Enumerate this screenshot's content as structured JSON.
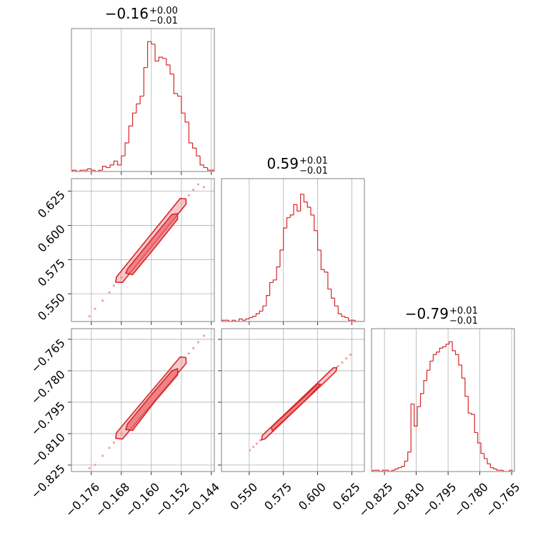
{
  "chart_data": [
    {
      "type": "histogram",
      "title": "−0.16",
      "title_upper": "+0.00",
      "title_lower": "−0.01",
      "color": "#d62728",
      "xlim": [
        -0.1813,
        -0.1432
      ],
      "xticks": [
        -0.176,
        -0.168,
        -0.16,
        -0.152,
        -0.144
      ],
      "ylim": [
        0,
        110
      ],
      "bins": [
        -0.181,
        -0.18,
        -0.179,
        -0.178,
        -0.177,
        -0.176,
        -0.175,
        -0.174,
        -0.173,
        -0.172,
        -0.171,
        -0.17,
        -0.169,
        -0.168,
        -0.167,
        -0.166,
        -0.165,
        -0.164,
        -0.163,
        -0.162,
        -0.161,
        -0.16,
        -0.159,
        -0.158,
        -0.157,
        -0.156,
        -0.155,
        -0.154,
        -0.153,
        -0.152,
        -0.151,
        -0.15,
        -0.149,
        -0.148,
        -0.147,
        -0.146,
        -0.145,
        -0.144,
        -0.143
      ],
      "values": [
        1,
        0,
        1,
        1,
        2,
        1,
        0,
        1,
        4,
        3,
        5,
        8,
        5,
        12,
        22,
        35,
        45,
        52,
        58,
        80,
        100,
        98,
        85,
        88,
        87,
        82,
        75,
        60,
        58,
        45,
        38,
        22,
        18,
        12,
        5,
        3,
        1,
        1
      ]
    },
    {
      "type": "contour",
      "color": "#d62728",
      "fill_color": "#e8646a",
      "point_color": "#f2a3a5",
      "xlim": [
        -0.1813,
        -0.1432
      ],
      "xticks": [
        -0.176,
        -0.168,
        -0.16,
        -0.152,
        -0.144
      ],
      "ylim": [
        0.5297,
        0.6342
      ],
      "yticks": [
        {
          "value": 0.55,
          "label": "0.550"
        },
        0.575,
        {
          "value": 0.6,
          "label": "0.600"
        },
        0.625
      ],
      "points": {
        "x": [
          -0.1765,
          -0.175,
          -0.173,
          -0.1712,
          -0.17,
          -0.168,
          -0.15,
          -0.1488,
          -0.1475,
          -0.146
        ],
        "y": [
          0.5335,
          0.539,
          0.545,
          0.551,
          0.556,
          0.562,
          0.622,
          0.626,
          0.63,
          0.628
        ]
      },
      "contours": [
        {
          "x": [
            -0.1693,
            -0.1658,
            -0.1608,
            -0.1558,
            -0.1523,
            -0.1508,
            -0.1507,
            -0.1542,
            -0.1592,
            -0.1642,
            -0.1677,
            -0.1695
          ],
          "y": [
            0.5623,
            0.5741,
            0.591,
            0.6079,
            0.6197,
            0.6194,
            0.6157,
            0.6039,
            0.587,
            0.5701,
            0.5583,
            0.5585
          ]
        },
        {
          "x": [
            -0.1664,
            -0.16,
            -0.1545,
            -0.153,
            -0.153,
            -0.159,
            -0.165,
            -0.1668
          ],
          "y": [
            0.568,
            0.5895,
            0.608,
            0.6085,
            0.6045,
            0.584,
            0.564,
            0.565
          ]
        }
      ]
    },
    {
      "type": "histogram",
      "title": "0.59",
      "title_upper": "+0.01",
      "title_lower": "−0.01",
      "color": "#d62728",
      "xlim": [
        0.5297,
        0.6342
      ],
      "xticks": [
        0.55,
        0.575,
        0.6,
        0.625
      ],
      "ylim": [
        0,
        110
      ],
      "bins": [
        0.53,
        0.5325,
        0.535,
        0.5375,
        0.54,
        0.5425,
        0.545,
        0.5475,
        0.55,
        0.5525,
        0.555,
        0.5575,
        0.56,
        0.5625,
        0.565,
        0.5675,
        0.57,
        0.5725,
        0.575,
        0.5775,
        0.58,
        0.5825,
        0.585,
        0.5875,
        0.59,
        0.5925,
        0.595,
        0.5975,
        0.6,
        0.6025,
        0.605,
        0.6075,
        0.61,
        0.6125,
        0.615,
        0.6175,
        0.62,
        0.6225,
        0.625,
        0.6275,
        0.63,
        0.6325
      ],
      "values": [
        1,
        1,
        0,
        1,
        0,
        2,
        1,
        2,
        3,
        4,
        6,
        8,
        12,
        20,
        30,
        32,
        42,
        55,
        72,
        80,
        82,
        90,
        85,
        98,
        92,
        88,
        82,
        70,
        55,
        40,
        38,
        25,
        18,
        12,
        6,
        4,
        3,
        1,
        1,
        0,
        0
      ]
    },
    {
      "type": "contour",
      "color": "#d62728",
      "fill_color": "#e8646a",
      "point_color": "#f2a3a5",
      "xlim": [
        -0.1813,
        -0.1432
      ],
      "xticks": [
        {
          "value": -0.176,
          "label": "−0.176"
        },
        {
          "value": -0.168,
          "label": "−0.168"
        },
        {
          "value": -0.16,
          "label": "−0.160"
        },
        {
          "value": -0.152,
          "label": "−0.152"
        },
        {
          "value": -0.144,
          "label": "−0.144"
        }
      ],
      "ylim": [
        -0.8281,
        -0.7599
      ],
      "yticks": [
        {
          "value": -0.825,
          "label": "−0.825"
        },
        {
          "value": -0.81,
          "label": "−0.810"
        },
        {
          "value": -0.795,
          "label": "−0.795"
        },
        {
          "value": -0.78,
          "label": "−0.780"
        },
        {
          "value": -0.765,
          "label": "−0.765"
        }
      ],
      "points": {
        "x": [
          -0.1765,
          -0.175,
          -0.173,
          -0.1712,
          -0.17,
          -0.168,
          -0.15,
          -0.1488,
          -0.1475,
          -0.146
        ],
        "y": [
          -0.8265,
          -0.8249,
          -0.8206,
          -0.8168,
          -0.8143,
          -0.81,
          -0.7718,
          -0.7692,
          -0.7664,
          -0.7633
        ]
      },
      "contours": [
        {
          "x": [
            -0.1693,
            -0.1658,
            -0.1608,
            -0.1558,
            -0.1523,
            -0.1508,
            -0.1507,
            -0.1542,
            -0.1592,
            -0.1642,
            -0.1677,
            -0.1695
          ],
          "y": [
            -0.8096,
            -0.8021,
            -0.7915,
            -0.7809,
            -0.7734,
            -0.7737,
            -0.7764,
            -0.7839,
            -0.7945,
            -0.8051,
            -0.8126,
            -0.8122
          ]
        },
        {
          "x": [
            -0.1664,
            -0.16,
            -0.1545,
            -0.153,
            -0.153,
            -0.159,
            -0.165,
            -0.1668
          ],
          "y": [
            -0.8055,
            -0.7915,
            -0.78,
            -0.779,
            -0.782,
            -0.7945,
            -0.8085,
            -0.808
          ]
        }
      ]
    },
    {
      "type": "contour",
      "color": "#d62728",
      "fill_color": "#e8646a",
      "point_color": "#f2a3a5",
      "xlim": [
        0.5297,
        0.6342
      ],
      "xticks": [
        {
          "value": 0.55,
          "label": "0.550"
        },
        0.575,
        {
          "value": 0.6,
          "label": "0.600"
        },
        0.625
      ],
      "ylim": [
        -0.8281,
        -0.7599
      ],
      "yticks": [
        -0.825,
        -0.81,
        -0.795,
        -0.78,
        -0.765
      ],
      "points": {
        "x": [
          0.5505,
          0.553,
          0.5555,
          0.558,
          0.615,
          0.618,
          0.621,
          0.624
        ],
        "y": [
          -0.8179,
          -0.8163,
          -0.8148,
          -0.8132,
          -0.7778,
          -0.776,
          -0.7741,
          -0.7723
        ]
      },
      "contours": [
        {
          "x": [
            0.5595,
            0.574,
            0.589,
            0.604,
            0.6115,
            0.614,
            0.6135,
            0.606,
            0.591,
            0.576,
            0.5615,
            0.559
          ],
          "y": [
            -0.8109,
            -0.8019,
            -0.7926,
            -0.7833,
            -0.7786,
            -0.7785,
            -0.7802,
            -0.7849,
            -0.7942,
            -0.8035,
            -0.8125,
            -0.813
          ]
        },
        {
          "x": [
            0.566,
            0.59,
            0.6,
            0.602,
            0.592,
            0.567
          ],
          "y": [
            -0.807,
            -0.7925,
            -0.7862,
            -0.7865,
            -0.7935,
            -0.8088
          ]
        }
      ]
    },
    {
      "type": "histogram",
      "title": "−0.79",
      "title_upper": "+0.01",
      "title_lower": "−0.01",
      "color": "#d62728",
      "xlim": [
        -0.8311,
        -0.7637
      ],
      "xticks": [
        {
          "value": -0.825,
          "label": "−0.825"
        },
        {
          "value": -0.81,
          "label": "−0.810"
        },
        {
          "value": -0.795,
          "label": "−0.795"
        },
        {
          "value": -0.78,
          "label": "−0.780"
        },
        {
          "value": -0.765,
          "label": "−0.765"
        }
      ],
      "ylim": [
        0,
        110
      ],
      "bins": [
        -0.8305,
        -0.829,
        -0.8275,
        -0.826,
        -0.8245,
        -0.823,
        -0.8215,
        -0.82,
        -0.8185,
        -0.817,
        -0.8155,
        -0.814,
        -0.8125,
        -0.811,
        -0.8095,
        -0.808,
        -0.8065,
        -0.805,
        -0.8035,
        -0.802,
        -0.8005,
        -0.799,
        -0.7975,
        -0.796,
        -0.7945,
        -0.793,
        -0.7915,
        -0.79,
        -0.7885,
        -0.787,
        -0.7855,
        -0.784,
        -0.7825,
        -0.781,
        -0.7795,
        -0.778,
        -0.7765,
        -0.775,
        -0.7735,
        -0.772,
        -0.7705,
        -0.769,
        -0.7675,
        -0.766,
        -0.7645
      ],
      "values": [
        1,
        1,
        0,
        1,
        1,
        0,
        1,
        2,
        3,
        4,
        8,
        15,
        52,
        35,
        50,
        60,
        70,
        78,
        85,
        90,
        92,
        95,
        96,
        98,
        100,
        93,
        90,
        82,
        72,
        58,
        45,
        44,
        30,
        22,
        14,
        10,
        6,
        3,
        2,
        1,
        1,
        0,
        0,
        1
      ]
    }
  ]
}
